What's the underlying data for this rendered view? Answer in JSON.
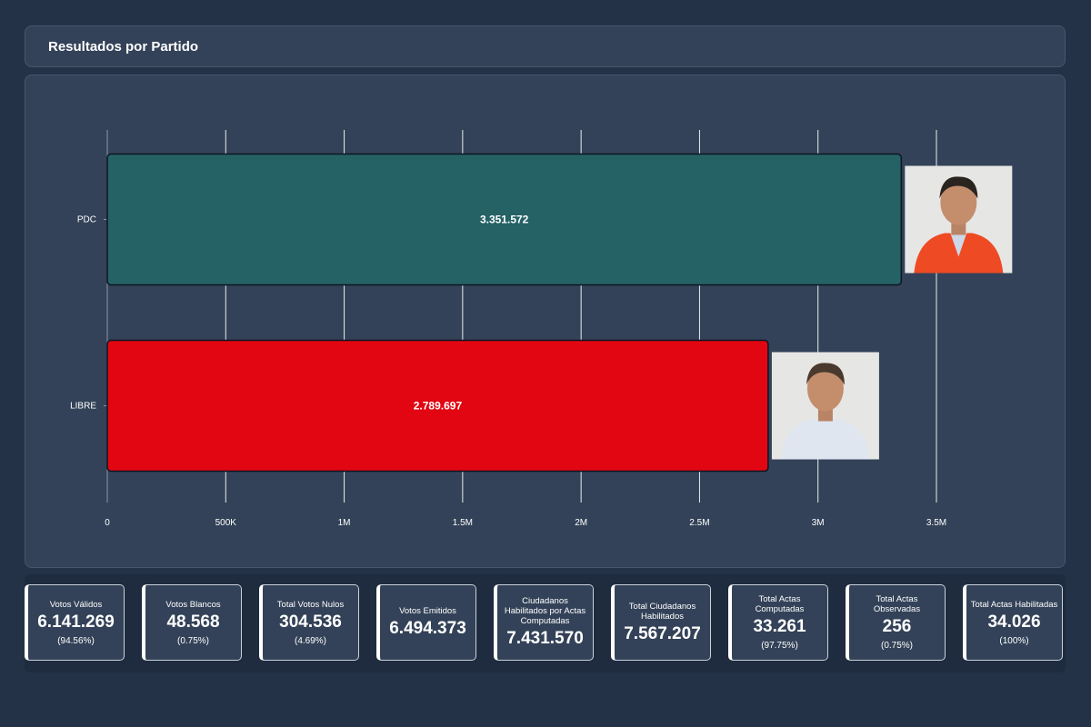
{
  "header": {
    "title": "Resultados por Partido"
  },
  "colors": {
    "background": "#243247",
    "panel": "#334258",
    "pdc_bar": "#246265",
    "libre_bar": "#e10612"
  },
  "chart_data": {
    "type": "bar",
    "orientation": "horizontal",
    "categories": [
      "PDC",
      "LIBRE"
    ],
    "values": [
      3351572,
      2789697
    ],
    "value_labels": [
      "3.351.572",
      "2.789.697"
    ],
    "colors": [
      "#246265",
      "#e10612"
    ],
    "xlim": [
      0,
      3500000
    ],
    "ticks": [
      0,
      500000,
      1000000,
      1500000,
      2000000,
      2500000,
      3000000,
      3500000
    ],
    "tick_labels": [
      "0",
      "500K",
      "1M",
      "1.5M",
      "2M",
      "2.5M",
      "3M",
      "3.5M"
    ],
    "grid": true,
    "legend": "none"
  },
  "stats": [
    {
      "label": "Votos Válidos",
      "value": "6.141.269",
      "pct": "(94.56%)"
    },
    {
      "label": "Votos Blancos",
      "value": "48.568",
      "pct": "(0.75%)"
    },
    {
      "label": "Total Votos Nulos",
      "value": "304.536",
      "pct": "(4.69%)"
    },
    {
      "label": "Votos Emitidos",
      "value": "6.494.373",
      "pct": ""
    },
    {
      "label": "Ciudadanos Habilitados por Actas Computadas",
      "value": "7.431.570",
      "pct": ""
    },
    {
      "label": "Total Ciudadanos Habilitados",
      "value": "7.567.207",
      "pct": ""
    },
    {
      "label": "Total Actas Computadas",
      "value": "33.261",
      "pct": "(97.75%)"
    },
    {
      "label": "Total Actas Observadas",
      "value": "256",
      "pct": "(0.75%)"
    },
    {
      "label": "Total Actas Habilitadas",
      "value": "34.026",
      "pct": "(100%)"
    }
  ]
}
